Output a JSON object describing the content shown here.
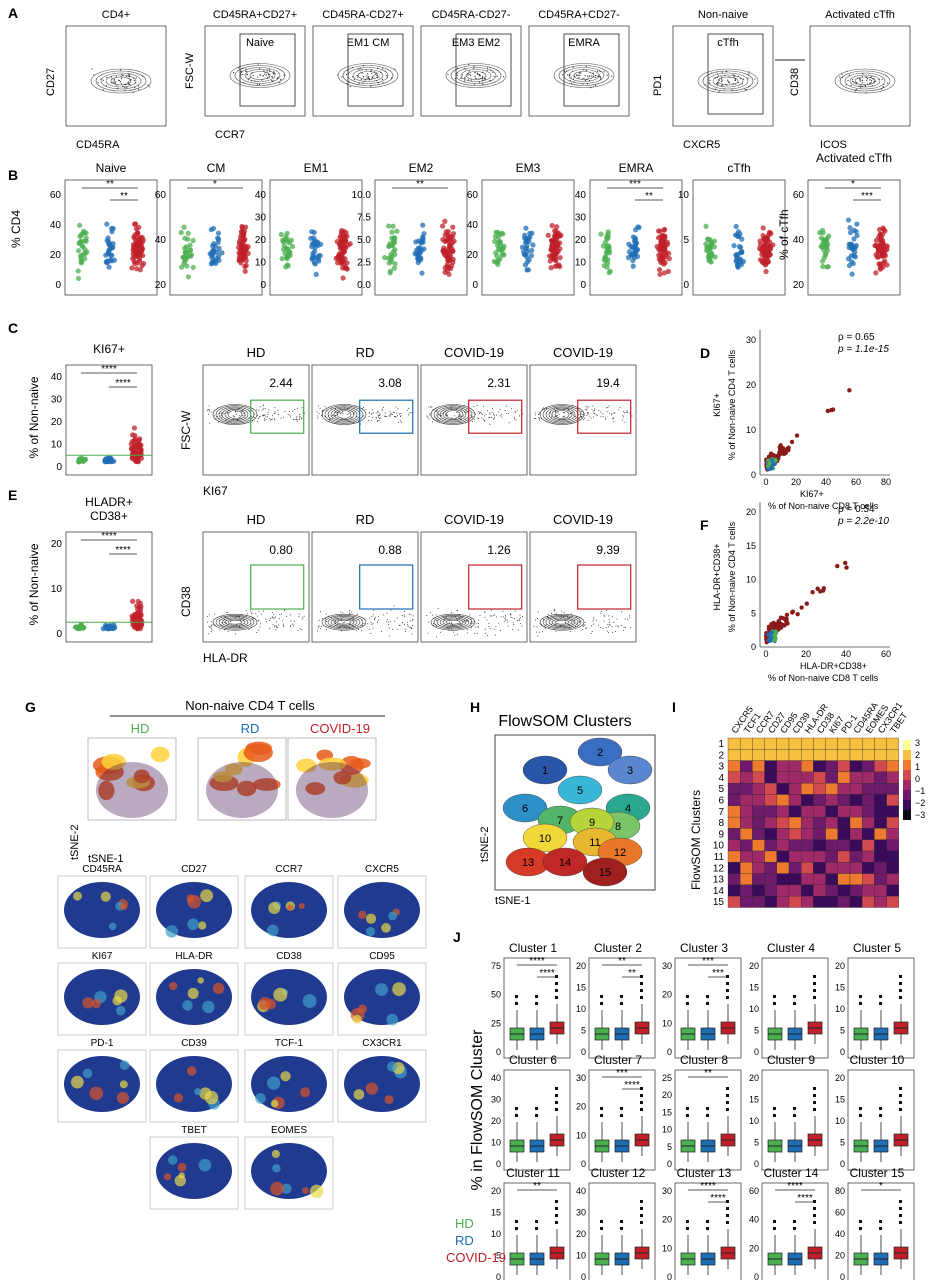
{
  "panels": {
    "A": {
      "letter": "A",
      "gates": [
        {
          "title": "CD4+",
          "xlabel": "CD45RA",
          "ylabel": "CD27",
          "label": ""
        },
        {
          "title": "CD45RA+CD27+",
          "xlabel": "CCR7",
          "ylabel": "FSC-W",
          "label": "Naive"
        },
        {
          "title": "CD45RA-CD27+",
          "xlabel": "",
          "ylabel": "",
          "label": "EM1   CM"
        },
        {
          "title": "CD45RA-CD27-",
          "xlabel": "",
          "ylabel": "",
          "label": "EM3   EM2"
        },
        {
          "title": "CD45RA+CD27-",
          "xlabel": "",
          "ylabel": "",
          "label": "EMRA"
        },
        {
          "title": "Non-naive",
          "xlabel": "CXCR5",
          "ylabel": "PD1",
          "label": "cTfh"
        },
        {
          "title": "Activated cTfh",
          "xlabel": "ICOS",
          "ylabel": "CD38",
          "label": ""
        }
      ]
    },
    "B": {
      "letter": "B",
      "ylabel_main": "% CD4",
      "ylabel_last": "% of cTfh",
      "plots": [
        {
          "title": "Naive",
          "ticks": [
            "60",
            "40",
            "20",
            "0"
          ],
          "max": 75,
          "sig": [
            "**",
            "**"
          ]
        },
        {
          "title": "CM",
          "ticks": [
            "60",
            "40",
            "20"
          ],
          "max": 65,
          "sig": [
            "*"
          ]
        },
        {
          "title": "EM1",
          "ticks": [
            "40",
            "30",
            "20",
            "10",
            "0"
          ],
          "max": 45,
          "sig": []
        },
        {
          "title": "EM2",
          "ticks": [
            "10.0",
            "7.5",
            "5.0",
            "2.5",
            "0.0"
          ],
          "max": 10,
          "sig": [
            "**"
          ]
        },
        {
          "title": "EM3",
          "ticks": [
            "60",
            "40",
            "20",
            "0"
          ],
          "max": 70,
          "sig": []
        },
        {
          "title": "EMRA",
          "ticks": [
            "40",
            "30",
            "20",
            "10",
            "0"
          ],
          "max": 45,
          "sig": [
            "***",
            "**"
          ]
        },
        {
          "title": "cTfh",
          "ticks": [
            "10",
            "5",
            "0"
          ],
          "max": 14,
          "sig": []
        },
        {
          "title": "Activated cTfh",
          "ticks": [
            "60",
            "40",
            "20"
          ],
          "max": 70,
          "sig": [
            "*",
            "***"
          ]
        }
      ]
    },
    "C": {
      "letter": "C",
      "title": "KI67+",
      "ylabel": "% of Non-naive",
      "ticks": [
        "40",
        "30",
        "20",
        "10",
        "0"
      ],
      "sig": [
        "****",
        "****"
      ],
      "flow_titles": [
        "HD",
        "RD",
        "COVID-19",
        "COVID-19"
      ],
      "flow_values": [
        "2.44",
        "3.08",
        "2.31",
        "19.4"
      ],
      "flow_xlabel": "KI67",
      "flow_ylabel": "FSC-W"
    },
    "D": {
      "letter": "D",
      "rho": "ρ = 0.65",
      "p": "p = 1.1e-15",
      "ylabel_1": "KI67+",
      "ylabel_2": "% of Non-naive CD4 T cells",
      "xlabel_1": "KI67+",
      "xlabel_2": "% of Non-naive CD8 T cells",
      "yticks": [
        "30",
        "20",
        "10",
        "0"
      ],
      "xticks": [
        "0",
        "20",
        "40",
        "60",
        "80"
      ]
    },
    "E": {
      "letter": "E",
      "title_1": "HLADR+",
      "title_2": "CD38+",
      "ylabel": "% of Non-naive",
      "ticks": [
        "20",
        "10",
        "0"
      ],
      "sig": [
        "****",
        "****"
      ],
      "flow_titles": [
        "HD",
        "RD",
        "COVID-19",
        "COVID-19"
      ],
      "flow_values": [
        "0.80",
        "0.88",
        "1.26",
        "9.39"
      ],
      "flow_xlabel": "HLA-DR",
      "flow_ylabel": "CD38"
    },
    "F": {
      "letter": "F",
      "rho": "ρ = 0.54",
      "p": "p = 2.2e-10",
      "ylabel_1": "HLA-DR+CD38+",
      "ylabel_2": "% of Non-naive CD4 T cells",
      "xlabel_1": "HLA-DR+CD38+",
      "xlabel_2": "% of Non-naive CD8 T cells",
      "yticks": [
        "20",
        "15",
        "10",
        "5",
        "0"
      ],
      "xticks": [
        "0",
        "20",
        "40",
        "60"
      ]
    },
    "G": {
      "letter": "G",
      "header": "Non-naive CD4 T cells",
      "groups": [
        "HD",
        "RD",
        "COVID-19"
      ],
      "tsne_x": "tSNE-1",
      "tsne_y": "tSNE-2",
      "markers": [
        "CD45RA",
        "CD27",
        "CCR7",
        "CXCR5",
        "KI67",
        "HLA-DR",
        "CD38",
        "CD95",
        "PD-1",
        "CD39",
        "TCF-1",
        "CX3CR1",
        "TBET",
        "EOMES"
      ]
    },
    "H": {
      "letter": "H",
      "title": "FlowSOM Clusters",
      "xlabel": "tSNE-1",
      "ylabel": "tSNE-2",
      "clusters": [
        "1",
        "2",
        "3",
        "4",
        "5",
        "6",
        "7",
        "8",
        "9",
        "10",
        "11",
        "12",
        "13",
        "14",
        "15"
      ]
    },
    "I": {
      "letter": "I",
      "ylabel": "FlowSOM Clusters",
      "columns": [
        "CXCR5",
        "TCF1",
        "CCR7",
        "CD27",
        "CD95",
        "CD39",
        "HLA-DR",
        "CD38",
        "KI67",
        "PD-1",
        "CD45RA",
        "EOMES",
        "CX3CR1",
        "TBET"
      ],
      "rows": [
        "1",
        "2",
        "3",
        "4",
        "5",
        "6",
        "7",
        "8",
        "9",
        "10",
        "11",
        "12",
        "13",
        "14",
        "15"
      ],
      "legend_ticks": [
        "3",
        "2",
        "1",
        "0",
        "−1",
        "−2",
        "−3"
      ]
    },
    "J": {
      "letter": "J",
      "ylabel": "% in FlowSOM Cluster",
      "legend": [
        "HD",
        "RD",
        "COVID-19"
      ],
      "plots": [
        {
          "title": "Cluster 1",
          "ticks": [
            "75",
            "50",
            "25",
            "0"
          ],
          "sig": [
            "****",
            "****"
          ]
        },
        {
          "title": "Cluster 2",
          "ticks": [
            "20",
            "15",
            "10",
            "5",
            "0"
          ],
          "sig": [
            "**",
            "**"
          ]
        },
        {
          "title": "Cluster 3",
          "ticks": [
            "30",
            "20",
            "10",
            "0"
          ],
          "sig": [
            "***",
            "***"
          ]
        },
        {
          "title": "Cluster 4",
          "ticks": [
            "20",
            "15",
            "10",
            "5",
            "0"
          ],
          "sig": []
        },
        {
          "title": "Cluster 5",
          "ticks": [
            "20",
            "15",
            "10",
            "5",
            "0"
          ],
          "sig": []
        },
        {
          "title": "Cluster 6",
          "ticks": [
            "40",
            "30",
            "20",
            "10",
            "0"
          ],
          "sig": []
        },
        {
          "title": "Cluster 7",
          "ticks": [
            "30",
            "20",
            "10",
            "0"
          ],
          "sig": [
            "***",
            "****"
          ]
        },
        {
          "title": "Cluster 8",
          "ticks": [
            "25",
            "20",
            "15",
            "10",
            "5",
            "0"
          ],
          "sig": [
            "**"
          ]
        },
        {
          "title": "Cluster 9",
          "ticks": [
            "20",
            "15",
            "10",
            "5",
            "0"
          ],
          "sig": []
        },
        {
          "title": "Cluster 10",
          "ticks": [
            "20",
            "15",
            "10",
            "5",
            "0"
          ],
          "sig": []
        },
        {
          "title": "Cluster 11",
          "ticks": [
            "20",
            "15",
            "10",
            "5",
            "0"
          ],
          "sig": [
            "**"
          ]
        },
        {
          "title": "Cluster 12",
          "ticks": [
            "40",
            "30",
            "20",
            "10",
            "0"
          ],
          "sig": []
        },
        {
          "title": "Cluster 13",
          "ticks": [
            "30",
            "20",
            "10",
            "0"
          ],
          "sig": [
            "****",
            "****"
          ]
        },
        {
          "title": "Cluster 14",
          "ticks": [
            "60",
            "40",
            "20",
            "0"
          ],
          "sig": [
            "****",
            "****"
          ]
        },
        {
          "title": "Cluster 15",
          "ticks": [
            "80",
            "60",
            "40",
            "20",
            "0"
          ],
          "sig": [
            "*"
          ]
        }
      ]
    }
  },
  "colors": {
    "hd": "#4caf50",
    "rd": "#1f6db5",
    "covid": "#c0202a",
    "dark_red": "#8b1a1a"
  }
}
